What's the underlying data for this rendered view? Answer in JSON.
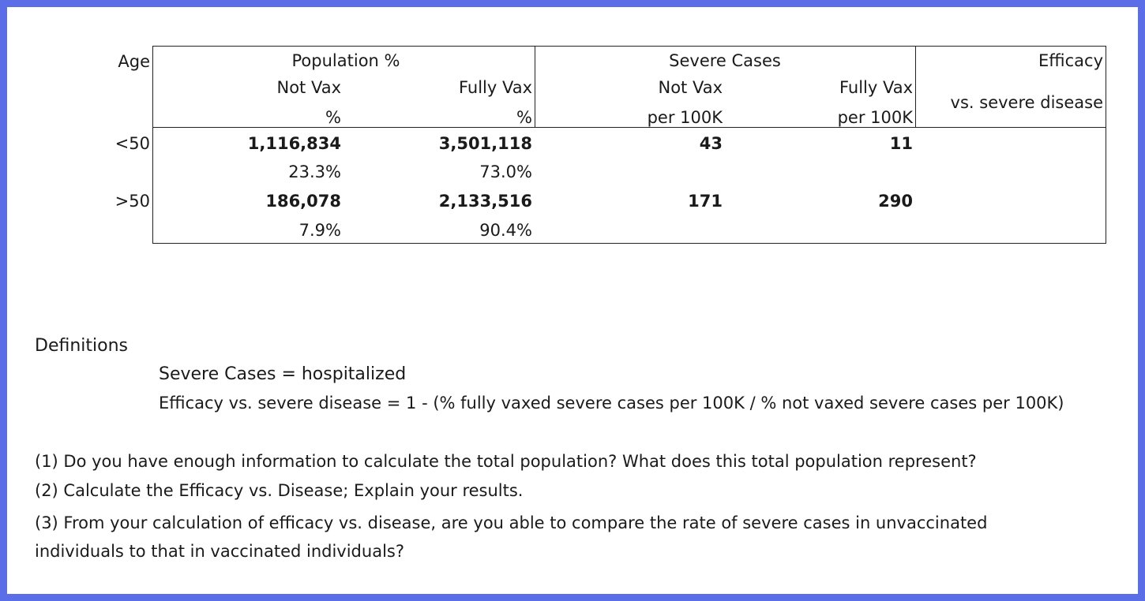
{
  "table": {
    "header": {
      "age": "Age",
      "population_group": "Population %",
      "severe_group": "Severe Cases",
      "efficacy_group": "Efficacy",
      "efficacy_sub": "vs. severe disease",
      "pop_not_vax": "Not Vax",
      "pop_not_vax_unit": "%",
      "pop_fully_vax": "Fully Vax",
      "pop_fully_vax_unit": "%",
      "sev_not_vax": "Not Vax",
      "sev_not_vax_unit": "per 100K",
      "sev_fully_vax": "Fully Vax",
      "sev_fully_vax_unit": "per 100K"
    },
    "rows": [
      {
        "age": "<50",
        "pop_not_vax": "1,116,834",
        "pop_not_vax_pct": "23.3%",
        "pop_fully_vax": "3,501,118",
        "pop_fully_vax_pct": "73.0%",
        "sev_not_vax": "43",
        "sev_fully_vax": "11"
      },
      {
        "age": ">50",
        "pop_not_vax": "186,078",
        "pop_not_vax_pct": "7.9%",
        "pop_fully_vax": "2,133,516",
        "pop_fully_vax_pct": "90.4%",
        "sev_not_vax": "171",
        "sev_fully_vax": "290"
      }
    ]
  },
  "definitions": {
    "heading": "Definitions",
    "line1": "Severe Cases = hospitalized",
    "line2": "Efficacy vs. severe disease = 1 - (% fully vaxed severe cases per 100K / % not vaxed severe cases per 100K)"
  },
  "questions": {
    "q1": "(1) Do you have enough information to calculate the total population?  What does this total population represent?",
    "q2": "(2) Calculate the Efficacy vs. Disease; Explain your results.",
    "q3_line1": "(3) From your calculation of efficacy vs. disease, are you able to compare the rate of severe cases in unvaccinated",
    "q3_line2": "individuals to that in vaccinated individuals?"
  },
  "colors": {
    "frame": "#5b6ee8"
  }
}
